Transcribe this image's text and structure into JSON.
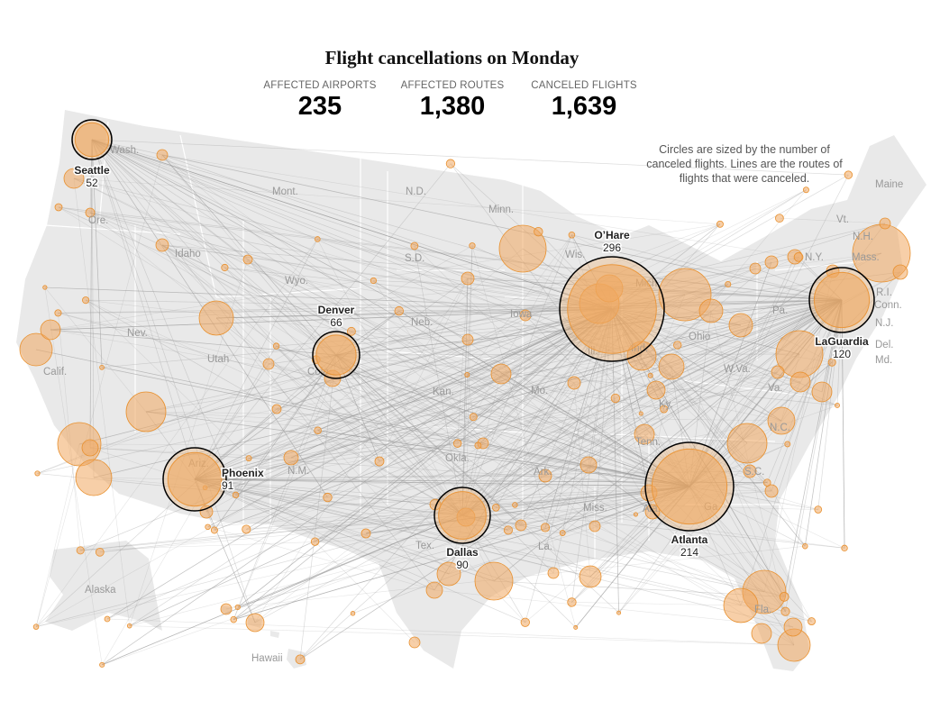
{
  "title": "Flight cancellations on Monday",
  "stats": [
    {
      "label": "AFFECTED AIRPORTS",
      "value": "235"
    },
    {
      "label": "AFFECTED ROUTES",
      "value": "1,380"
    },
    {
      "label": "CANCELED FLIGHTS",
      "value": "1,639"
    }
  ],
  "note": "Circles are sized by the number of canceled flights. Lines are the routes of flights that were canceled.",
  "colors": {
    "land": "#e9e9e9",
    "circle_fill": "#f0a860",
    "circle_stroke": "#e8902e",
    "hub_stroke": "#000000",
    "route": "#999999"
  },
  "hubs": [
    {
      "name": "Seattle",
      "canceled": "52"
    },
    {
      "name": "Denver",
      "canceled": "66"
    },
    {
      "name": "O’Hare",
      "canceled": "296"
    },
    {
      "name": "LaGuardia",
      "canceled": "120"
    },
    {
      "name": "Phoenix",
      "canceled": "91"
    },
    {
      "name": "Dallas",
      "canceled": "90"
    },
    {
      "name": "Atlanta",
      "canceled": "214"
    }
  ],
  "state_labels": [
    "Wash.",
    "Ore.",
    "Calif.",
    "Nev.",
    "Idaho",
    "Mont.",
    "Wyo.",
    "Utah",
    "Ariz.",
    "Colo.",
    "N.M.",
    "N.D.",
    "S.D.",
    "Neb.",
    "Kan.",
    "Okla.",
    "Tex.",
    "Minn.",
    "Iowa",
    "Mo.",
    "Ark.",
    "La.",
    "Wis.",
    "Ill.",
    "Ind.",
    "Mich.",
    "Ohio",
    "Ky.",
    "Tenn.",
    "Miss.",
    "Ala.",
    "Ga.",
    "Fla.",
    "S.C.",
    "N.C.",
    "Va.",
    "W.Va.",
    "Pa.",
    "N.Y.",
    "Vt.",
    "N.H.",
    "Maine",
    "Mass.",
    "R.I.",
    "Conn.",
    "N.J.",
    "Del.",
    "Md.",
    "Alaska",
    "Hawaii"
  ]
}
